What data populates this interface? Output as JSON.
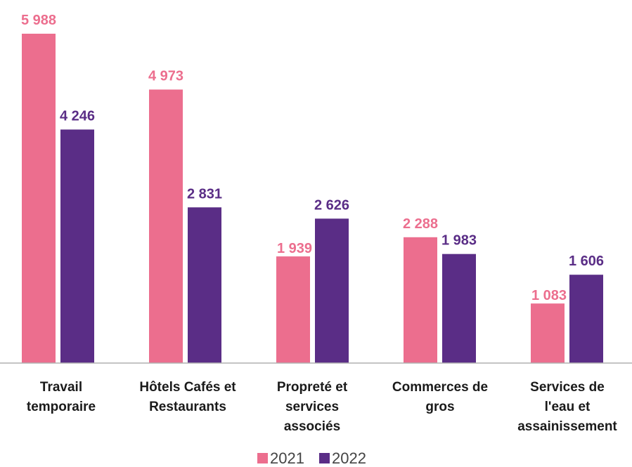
{
  "chart_data": {
    "type": "bar",
    "categories": [
      [
        "Travail",
        "temporaire"
      ],
      [
        "Hôtels Cafés et",
        "Restaurants"
      ],
      [
        "Propreté et",
        "services",
        "associés"
      ],
      [
        "Commerces de",
        "gros"
      ],
      [
        "Services de",
        "l'eau et",
        "assainissement"
      ]
    ],
    "series": [
      {
        "name": "2021",
        "color": "#EC6E8E",
        "values": [
          5988,
          4973,
          1939,
          2288,
          1083
        ],
        "labels": [
          "5 988",
          "4 973",
          "1 939",
          "2 288",
          "1 083"
        ]
      },
      {
        "name": "2022",
        "color": "#5A2D86",
        "values": [
          4246,
          2831,
          2626,
          1983,
          1606
        ],
        "labels": [
          "4 246",
          "2 831",
          "2 626",
          "1 983",
          "1 606"
        ]
      }
    ],
    "ylim": [
      0,
      6300
    ],
    "grid": false,
    "legend": "bottom-center"
  }
}
